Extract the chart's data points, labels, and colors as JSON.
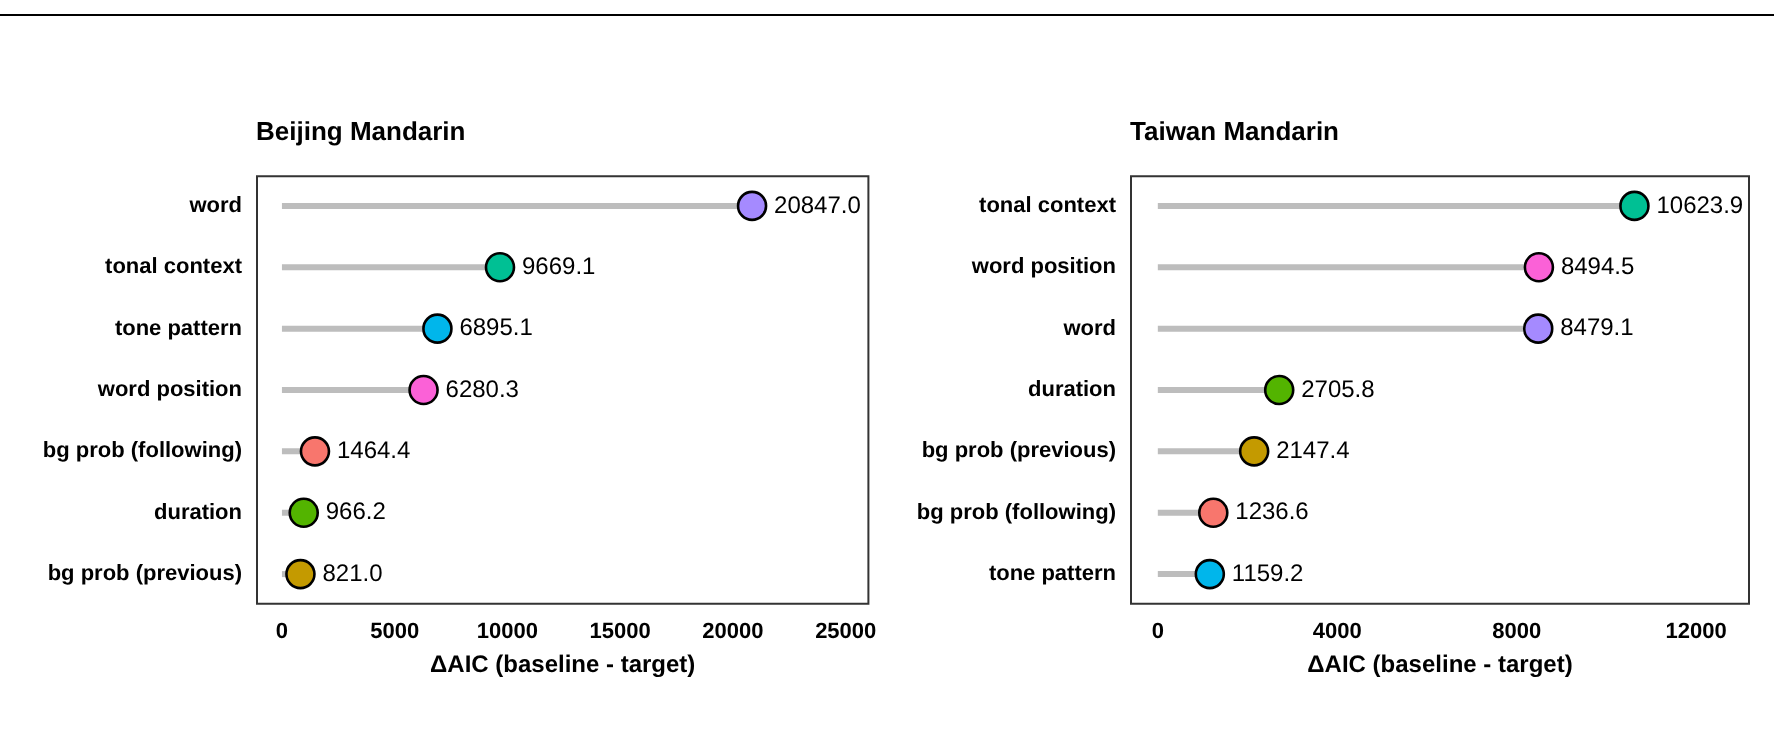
{
  "chart_data": [
    {
      "type": "lollipop",
      "orientation": "horizontal",
      "title": "Beijing Mandarin",
      "xlabel": "ΔAIC (baseline - target)",
      "categories": [
        "word",
        "tonal context",
        "tone pattern",
        "word position",
        "bg prob (following)",
        "duration",
        "bg prob (previous)"
      ],
      "values": [
        20847.0,
        9669.1,
        6895.1,
        6280.3,
        1464.4,
        966.2,
        821.0
      ],
      "value_labels": [
        "20847.0",
        "9669.1",
        "6895.1",
        "6280.3",
        "1464.4",
        "966.2",
        "821.0"
      ],
      "colors": [
        "#a58aff",
        "#00c094",
        "#00b6eb",
        "#fb61d7",
        "#f8766d",
        "#53b400",
        "#c49a00"
      ],
      "xlim": [
        -1150,
        26050
      ],
      "xticks": [
        0,
        5000,
        10000,
        15000,
        20000,
        25000
      ],
      "grid": false,
      "legend": false,
      "marker": "circle"
    },
    {
      "type": "lollipop",
      "orientation": "horizontal",
      "title": "Taiwan Mandarin",
      "xlabel": "ΔAIC (baseline - target)",
      "categories": [
        "tonal context",
        "word position",
        "word",
        "duration",
        "bg prob (previous)",
        "bg prob (following)",
        "tone pattern"
      ],
      "values": [
        10623.9,
        8494.5,
        8479.1,
        2705.8,
        2147.4,
        1236.6,
        1159.2
      ],
      "value_labels": [
        "10623.9",
        "8494.5",
        "8479.1",
        "2705.8",
        "2147.4",
        "1236.6",
        "1159.2"
      ],
      "colors": [
        "#00c094",
        "#fb61d7",
        "#a58aff",
        "#53b400",
        "#c49a00",
        "#f8766d",
        "#00b6eb"
      ],
      "xlim": [
        -620,
        13200
      ],
      "xticks": [
        0,
        4000,
        8000,
        12000
      ],
      "grid": false,
      "legend": false,
      "marker": "circle"
    }
  ]
}
